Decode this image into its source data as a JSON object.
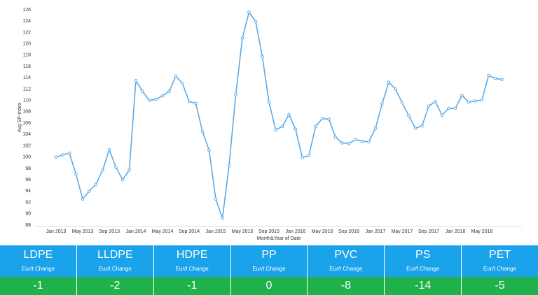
{
  "chart_data": {
    "type": "line",
    "y_label": "Avg SP-Index",
    "x_label": "Month&Year of Date",
    "categories": [
      "Jan 2013",
      null,
      null,
      null,
      "May 2013",
      null,
      null,
      null,
      "Sep 2013",
      null,
      null,
      null,
      "Jan 2014",
      null,
      null,
      null,
      "May 2014",
      null,
      null,
      null,
      "Sep 2014",
      null,
      null,
      null,
      "Jan 2015",
      null,
      null,
      null,
      "May 2015",
      null,
      null,
      null,
      "Sep 2015",
      null,
      null,
      null,
      "Jan 2016",
      null,
      null,
      null,
      "May 2016",
      null,
      null,
      null,
      "Sep 2016",
      null,
      null,
      null,
      "Jan 2017",
      null,
      null,
      null,
      "May 2017",
      null,
      null,
      null,
      "Sep 2017",
      null,
      null,
      null,
      "Jan 2018",
      null,
      null,
      null,
      "May 2018",
      null,
      null,
      null
    ],
    "series": [
      {
        "color": "#5aabea",
        "values": [
          100.0,
          100.4,
          100.7,
          97.0,
          92.6,
          94.0,
          95.2,
          97.7,
          101.3,
          98.2,
          96.0,
          97.7,
          113.5,
          111.6,
          110.0,
          110.2,
          110.8,
          111.6,
          114.3,
          113.0,
          109.8,
          109.5,
          104.5,
          101.2,
          92.6,
          89.2,
          98.5,
          111.0,
          121.0,
          125.6,
          123.9,
          117.7,
          109.7,
          104.8,
          105.4,
          107.5,
          104.9,
          99.9,
          100.3,
          105.4,
          106.8,
          106.7,
          103.5,
          102.5,
          102.4,
          103.1,
          102.8,
          102.7,
          105.1,
          109.4,
          113.2,
          112.0,
          109.6,
          107.3,
          105.1,
          105.5,
          109.0,
          109.8,
          107.4,
          108.6,
          108.6,
          110.9,
          109.7,
          109.9,
          110.1,
          114.4,
          113.9,
          113.7
        ]
      }
    ],
    "ylim": [
      88,
      126
    ],
    "yticks": [
      88,
      90,
      92,
      94,
      96,
      98,
      100,
      102,
      104,
      106,
      108,
      110,
      112,
      114,
      116,
      118,
      120,
      122,
      124,
      126
    ],
    "grid": false
  },
  "table": {
    "columns": [
      {
        "name": "LDPE",
        "subtitle": "Eur/t Change",
        "value": -1
      },
      {
        "name": "LLDPE",
        "subtitle": "Eur/t Change",
        "value": -2
      },
      {
        "name": "HDPE",
        "subtitle": "Eur/t Change",
        "value": -1
      },
      {
        "name": "PP",
        "subtitle": "Eur/t Change",
        "value": 0
      },
      {
        "name": "PVC",
        "subtitle": "Eur/t Change",
        "value": -8
      },
      {
        "name": "PS",
        "subtitle": "Eur/t Change",
        "value": -14
      },
      {
        "name": "PET",
        "subtitle": "Eur/t Change",
        "value": -5
      }
    ]
  }
}
